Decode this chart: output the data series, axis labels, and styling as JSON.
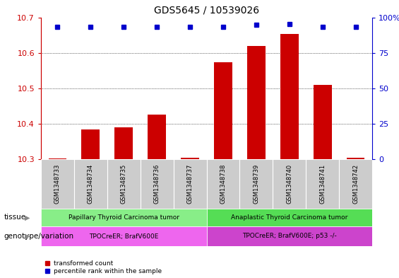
{
  "title": "GDS5645 / 10539026",
  "samples": [
    "GSM1348733",
    "GSM1348734",
    "GSM1348735",
    "GSM1348736",
    "GSM1348737",
    "GSM1348738",
    "GSM1348739",
    "GSM1348740",
    "GSM1348741",
    "GSM1348742"
  ],
  "transformed_count": [
    10.302,
    10.385,
    10.39,
    10.425,
    10.305,
    10.575,
    10.62,
    10.655,
    10.51,
    10.303
  ],
  "percentile_y": [
    10.675,
    10.675,
    10.675,
    10.675,
    10.675,
    10.675,
    10.68,
    10.682,
    10.675,
    10.675
  ],
  "bar_color": "#cc0000",
  "dot_color": "#0000cc",
  "ylim_left": [
    10.3,
    10.7
  ],
  "ylim_right": [
    0,
    100
  ],
  "yticks_left": [
    10.3,
    10.4,
    10.5,
    10.6,
    10.7
  ],
  "yticks_right": [
    0,
    25,
    50,
    75,
    100
  ],
  "tissue_groups": [
    {
      "label": "Papillary Thyroid Carcinoma tumor",
      "start": 0,
      "end": 5,
      "color": "#88ee88"
    },
    {
      "label": "Anaplastic Thyroid Carcinoma tumor",
      "start": 5,
      "end": 10,
      "color": "#55dd55"
    }
  ],
  "genotype_groups": [
    {
      "label": "TPOCreER; BrafV600E",
      "start": 0,
      "end": 5,
      "color": "#ee66ee"
    },
    {
      "label": "TPOCreER; BrafV600E; p53 -/-",
      "start": 5,
      "end": 10,
      "color": "#cc44cc"
    }
  ],
  "tissue_label": "tissue",
  "genotype_label": "genotype/variation",
  "legend_items": [
    {
      "color": "#cc0000",
      "label": "transformed count"
    },
    {
      "color": "#0000cc",
      "label": "percentile rank within the sample"
    }
  ],
  "left_axis_color": "#cc0000",
  "right_axis_color": "#0000cc",
  "bar_bottom": 10.3,
  "sample_box_color": "#cccccc",
  "title_fontsize": 10,
  "axis_fontsize": 8,
  "label_fontsize": 7.5
}
